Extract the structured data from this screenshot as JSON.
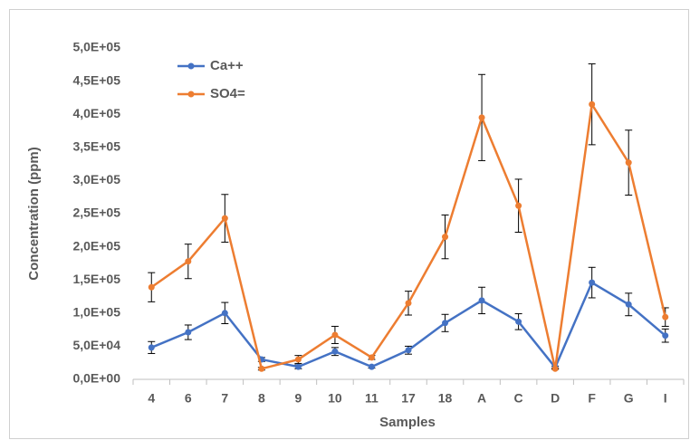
{
  "chart_data": {
    "type": "line",
    "x_label": "Samples",
    "y_label": "Concentration (ppm)",
    "categories": [
      "4",
      "6",
      "7",
      "8",
      "9",
      "10",
      "11",
      "17",
      "18",
      "A",
      "C",
      "D",
      "F",
      "G",
      "I"
    ],
    "series": [
      {
        "name": "Ca++",
        "color": "#4472c4",
        "values": [
          48000,
          71000,
          100000,
          30000,
          19000,
          42000,
          19000,
          44000,
          85000,
          119000,
          87000,
          18000,
          146000,
          113000,
          66000
        ],
        "errors": [
          9000,
          11000,
          16000,
          3000,
          3000,
          6000,
          2000,
          6000,
          13000,
          20000,
          12000,
          2000,
          23000,
          17000,
          10000
        ]
      },
      {
        "name": "SO4=",
        "color": "#ed7d31",
        "values": [
          139000,
          178000,
          243000,
          16000,
          30000,
          67000,
          33000,
          115000,
          215000,
          395000,
          262000,
          16000,
          415000,
          327000,
          94000
        ],
        "errors": [
          22000,
          26000,
          36000,
          2000,
          6000,
          13000,
          3000,
          18000,
          33000,
          65000,
          40000,
          1000,
          61000,
          49000,
          14000
        ]
      }
    ],
    "ylim": [
      0,
      500000
    ],
    "yticks": [
      {
        "value": 0,
        "label": "0,0E+00"
      },
      {
        "value": 50000,
        "label": "5,0E+04"
      },
      {
        "value": 100000,
        "label": "1,0E+05"
      },
      {
        "value": 150000,
        "label": "1,5E+05"
      },
      {
        "value": 200000,
        "label": "2,0E+05"
      },
      {
        "value": 250000,
        "label": "2,5E+05"
      },
      {
        "value": 300000,
        "label": "3,0E+05"
      },
      {
        "value": 350000,
        "label": "3,5E+05"
      },
      {
        "value": 400000,
        "label": "4,0E+05"
      },
      {
        "value": 450000,
        "label": "4,5E+05"
      },
      {
        "value": 500000,
        "label": "5,0E+05"
      }
    ],
    "grid": false,
    "legend": "top-left"
  }
}
